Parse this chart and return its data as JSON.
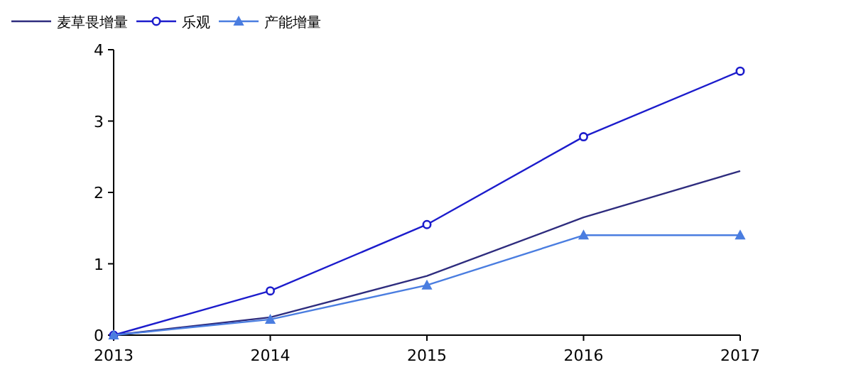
{
  "chart_data": {
    "type": "line",
    "x": [
      2013,
      2014,
      2015,
      2016,
      2017
    ],
    "xlim": [
      2013,
      2017
    ],
    "xticks": [
      2013,
      2014,
      2015,
      2016,
      2017
    ],
    "ylim": [
      0,
      4
    ],
    "yticks": [
      0,
      1,
      2,
      3,
      4
    ],
    "grid": false,
    "legend": "top left",
    "series": [
      {
        "name": "麦草畏增量",
        "color": "#2e2c7e",
        "marker": "none",
        "values": [
          0,
          0.25,
          0.83,
          1.65,
          2.3
        ]
      },
      {
        "name": "乐观",
        "color": "#1c1ccc",
        "marker": "circle",
        "values": [
          0,
          0.62,
          1.55,
          2.78,
          3.7
        ]
      },
      {
        "name": "产能增量",
        "color": "#4a7de0",
        "marker": "triangle",
        "values": [
          0,
          0.22,
          0.7,
          1.4,
          1.4
        ]
      }
    ]
  }
}
